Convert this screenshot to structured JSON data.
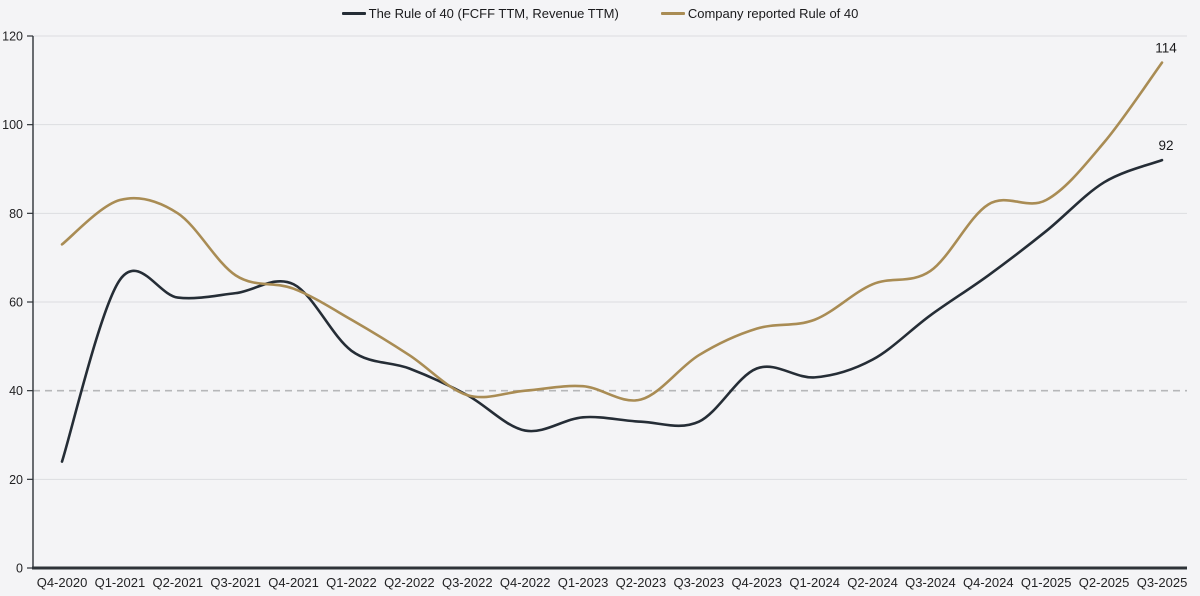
{
  "legend": {
    "items": [
      {
        "id": "fcff",
        "label": "The Rule of 40 (FCFF TTM, Revenue TTM)",
        "color": "#252d36"
      },
      {
        "id": "company",
        "label": "Company reported Rule of 40",
        "color": "#a98c54"
      }
    ]
  },
  "chart_data": {
    "type": "line",
    "title": "",
    "xlabel": "",
    "ylabel": "",
    "categories": [
      "Q4-2020",
      "Q1-2021",
      "Q2-2021",
      "Q3-2021",
      "Q4-2021",
      "Q1-2022",
      "Q2-2022",
      "Q3-2022",
      "Q4-2022",
      "Q1-2023",
      "Q2-2023",
      "Q3-2023",
      "Q4-2023",
      "Q1-2024",
      "Q2-2024",
      "Q3-2024",
      "Q4-2024",
      "Q1-2025",
      "Q2-2025",
      "Q3-2025"
    ],
    "series": [
      {
        "id": "fcff",
        "name": "The Rule of 40 (FCFF TTM, Revenue TTM)",
        "color": "#252d36",
        "values": [
          24,
          65,
          61,
          62,
          64,
          49,
          45,
          39,
          31,
          34,
          33,
          33,
          45,
          43,
          47,
          57,
          66,
          76,
          87,
          92
        ],
        "end_label": "92"
      },
      {
        "id": "company",
        "name": "Company reported Rule of 40",
        "color": "#a98c54",
        "values": [
          73,
          83,
          80,
          66,
          63,
          56,
          48,
          39,
          40,
          41,
          38,
          48,
          54,
          56,
          64,
          67,
          82,
          83,
          96,
          114
        ],
        "end_label": "114"
      }
    ],
    "ylim": [
      0,
      120
    ],
    "yticks": [
      0,
      20,
      40,
      60,
      80,
      100,
      120
    ],
    "reference_line": {
      "value": 40,
      "style": "dashed"
    },
    "grid": "horizontal",
    "legend_position": "top-center"
  },
  "colors": {
    "background": "#f4f4f6",
    "gridline": "#dcdde0",
    "dashed_line": "#b6b7b9",
    "axis": "#2e3338",
    "tick_text": "#222224",
    "end_label_text": "#1a1a1c"
  }
}
